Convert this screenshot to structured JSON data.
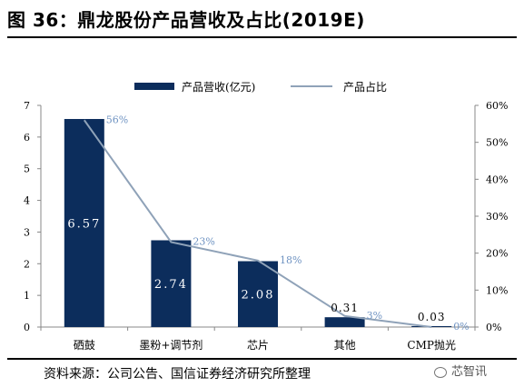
{
  "figure": {
    "title": "图 36：鼎龙股份产品营收及占比(2019E)",
    "source": "资料来源：公司公告、国信证券经济研究所整理",
    "watermark": "芯智讯"
  },
  "colors": {
    "bar": "#0c2d5c",
    "line": "#8fa2b8",
    "line_label": "#6f93c2",
    "bar_label_inside": "#ffffff",
    "axis": "#888888"
  },
  "chart_data": {
    "type": "bar",
    "categories": [
      "硒鼓",
      "墨粉+调节剂",
      "芯片",
      "其他",
      "CMP抛光"
    ],
    "series": [
      {
        "name": "产品营收(亿元)",
        "type": "bar",
        "axis": "left",
        "values": [
          6.57,
          2.74,
          2.08,
          0.31,
          0.03
        ],
        "labels": [
          "6.57",
          "2.74",
          "2.08",
          "0.31",
          "0.03"
        ]
      },
      {
        "name": "产品占比",
        "type": "line",
        "axis": "right",
        "values": [
          56,
          23,
          18,
          3,
          0
        ],
        "labels": [
          "56%",
          "23%",
          "18%",
          "3%",
          "0%"
        ]
      }
    ],
    "left_axis": {
      "ylim": [
        0,
        7
      ],
      "ticks": [
        "0",
        "1",
        "2",
        "3",
        "4",
        "5",
        "6",
        "7"
      ]
    },
    "right_axis": {
      "ylim": [
        0,
        60
      ],
      "ticks": [
        "0%",
        "10%",
        "20%",
        "30%",
        "40%",
        "50%",
        "60%"
      ]
    },
    "legend": {
      "position": "top"
    },
    "grid": false
  }
}
